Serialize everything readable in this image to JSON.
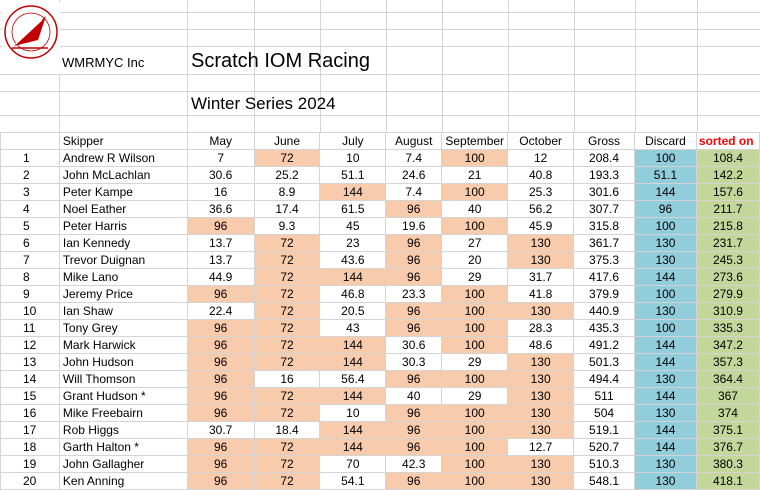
{
  "header": {
    "org": "WMRMYC Inc",
    "title": "Scratch IOM Racing",
    "subtitle": "Winter Series 2024",
    "logo_text": "WYNNUM MANLY RADIO MODEL YACHT CLUB INC"
  },
  "colors": {
    "highlight": "#f8cbad",
    "discard": "#92cddc",
    "sorted": "#c4d79b",
    "sorted_header": "#ff0000"
  },
  "columns": [
    "Skipper",
    "May",
    "June",
    "July",
    "August",
    "September",
    "October",
    "Gross",
    "Discard",
    "sorted on"
  ],
  "rows": [
    {
      "rank": "1",
      "skipper": "Andrew R Wilson",
      "may": "7",
      "june": "72",
      "july": "10",
      "august": "7.4",
      "september": "100",
      "october": "12",
      "gross": "208.4",
      "discard": "100",
      "sorted": "108.4",
      "hl": [
        "june",
        "september"
      ]
    },
    {
      "rank": "2",
      "skipper": "John McLachlan",
      "may": "30.6",
      "june": "25.2",
      "july": "51.1",
      "august": "24.6",
      "september": "21",
      "october": "40.8",
      "gross": "193.3",
      "discard": "51.1",
      "sorted": "142.2",
      "hl": []
    },
    {
      "rank": "3",
      "skipper": "Peter Kampe",
      "may": "16",
      "june": "8.9",
      "july": "144",
      "august": "7.4",
      "september": "100",
      "october": "25.3",
      "gross": "301.6",
      "discard": "144",
      "sorted": "157.6",
      "hl": [
        "july",
        "september"
      ]
    },
    {
      "rank": "4",
      "skipper": "Noel Eather",
      "may": "36.6",
      "june": "17.4",
      "july": "61.5",
      "august": "96",
      "september": "40",
      "october": "56.2",
      "gross": "307.7",
      "discard": "96",
      "sorted": "211.7",
      "hl": [
        "august"
      ]
    },
    {
      "rank": "5",
      "skipper": "Peter Harris",
      "may": "96",
      "june": "9.3",
      "july": "45",
      "august": "19.6",
      "september": "100",
      "october": "45.9",
      "gross": "315.8",
      "discard": "100",
      "sorted": "215.8",
      "hl": [
        "may",
        "september"
      ]
    },
    {
      "rank": "6",
      "skipper": "Ian Kennedy",
      "may": "13.7",
      "june": "72",
      "july": "23",
      "august": "96",
      "september": "27",
      "october": "130",
      "gross": "361.7",
      "discard": "130",
      "sorted": "231.7",
      "hl": [
        "june",
        "august",
        "october"
      ]
    },
    {
      "rank": "7",
      "skipper": "Trevor Duignan",
      "may": "13.7",
      "june": "72",
      "july": "43.6",
      "august": "96",
      "september": "20",
      "october": "130",
      "gross": "375.3",
      "discard": "130",
      "sorted": "245.3",
      "hl": [
        "june",
        "august",
        "october"
      ]
    },
    {
      "rank": "8",
      "skipper": "Mike Lano",
      "may": "44.9",
      "june": "72",
      "july": "144",
      "august": "96",
      "september": "29",
      "october": "31.7",
      "gross": "417.6",
      "discard": "144",
      "sorted": "273.6",
      "hl": [
        "june",
        "july",
        "august"
      ]
    },
    {
      "rank": "9",
      "skipper": "Jeremy Price",
      "may": "96",
      "june": "72",
      "july": "46.8",
      "august": "23.3",
      "september": "100",
      "october": "41.8",
      "gross": "379.9",
      "discard": "100",
      "sorted": "279.9",
      "hl": [
        "may",
        "june",
        "september"
      ]
    },
    {
      "rank": "10",
      "skipper": "Ian Shaw",
      "may": "22.4",
      "june": "72",
      "july": "20.5",
      "august": "96",
      "september": "100",
      "october": "130",
      "gross": "440.9",
      "discard": "130",
      "sorted": "310.9",
      "hl": [
        "june",
        "august",
        "september",
        "october"
      ]
    },
    {
      "rank": "11",
      "skipper": "Tony Grey",
      "may": "96",
      "june": "72",
      "july": "43",
      "august": "96",
      "september": "100",
      "october": "28.3",
      "gross": "435.3",
      "discard": "100",
      "sorted": "335.3",
      "hl": [
        "may",
        "june",
        "august",
        "september"
      ]
    },
    {
      "rank": "12",
      "skipper": "Mark Harwick",
      "may": "96",
      "june": "72",
      "july": "144",
      "august": "30.6",
      "september": "100",
      "october": "48.6",
      "gross": "491.2",
      "discard": "144",
      "sorted": "347.2",
      "hl": [
        "may",
        "june",
        "july",
        "september"
      ]
    },
    {
      "rank": "13",
      "skipper": "John Hudson",
      "may": "96",
      "june": "72",
      "july": "144",
      "august": "30.3",
      "september": "29",
      "october": "130",
      "gross": "501.3",
      "discard": "144",
      "sorted": "357.3",
      "hl": [
        "may",
        "june",
        "july",
        "october"
      ]
    },
    {
      "rank": "14",
      "skipper": "Will Thomson",
      "may": "96",
      "june": "16",
      "july": "56.4",
      "august": "96",
      "september": "100",
      "october": "130",
      "gross": "494.4",
      "discard": "130",
      "sorted": "364.4",
      "hl": [
        "may",
        "august",
        "september",
        "october"
      ]
    },
    {
      "rank": "15",
      "skipper": "Grant Hudson *",
      "may": "96",
      "june": "72",
      "july": "144",
      "august": "40",
      "september": "29",
      "october": "130",
      "gross": "511",
      "discard": "144",
      "sorted": "367",
      "hl": [
        "may",
        "june",
        "july",
        "october"
      ]
    },
    {
      "rank": "16",
      "skipper": "Mike Freebairn",
      "may": "96",
      "june": "72",
      "july": "10",
      "august": "96",
      "september": "100",
      "october": "130",
      "gross": "504",
      "discard": "130",
      "sorted": "374",
      "hl": [
        "may",
        "june",
        "august",
        "september",
        "october"
      ]
    },
    {
      "rank": "17",
      "skipper": "Rob Higgs",
      "may": "30.7",
      "june": "18.4",
      "july": "144",
      "august": "96",
      "september": "100",
      "october": "130",
      "gross": "519.1",
      "discard": "144",
      "sorted": "375.1",
      "hl": [
        "july",
        "august",
        "september",
        "october"
      ]
    },
    {
      "rank": "18",
      "skipper": "Garth Halton *",
      "may": "96",
      "june": "72",
      "july": "144",
      "august": "96",
      "september": "100",
      "october": "12.7",
      "gross": "520.7",
      "discard": "144",
      "sorted": "376.7",
      "hl": [
        "may",
        "june",
        "july",
        "august",
        "september"
      ]
    },
    {
      "rank": "19",
      "skipper": "John Gallagher",
      "may": "96",
      "june": "72",
      "july": "70",
      "august": "42.3",
      "september": "100",
      "october": "130",
      "gross": "510.3",
      "discard": "130",
      "sorted": "380.3",
      "hl": [
        "may",
        "june",
        "september",
        "october"
      ]
    },
    {
      "rank": "20",
      "skipper": "Ken Anning",
      "may": "96",
      "june": "72",
      "july": "54.1",
      "august": "96",
      "september": "100",
      "october": "130",
      "gross": "548.1",
      "discard": "130",
      "sorted": "418.1",
      "hl": [
        "may",
        "june",
        "august",
        "september",
        "october"
      ]
    }
  ]
}
